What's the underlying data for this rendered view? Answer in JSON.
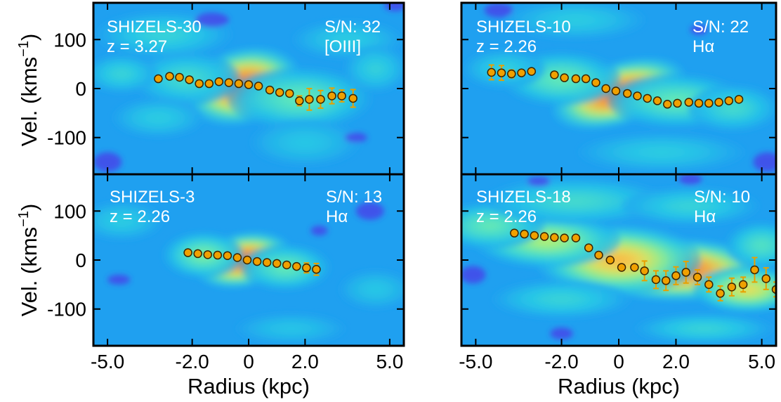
{
  "figure": {
    "xlabel": "Radius (kpc)",
    "ylabel": "Vel. (kms",
    "ylabel_sup": "−1",
    "ylabel_close": ")"
  },
  "colors": {
    "background": "#1fa0f0",
    "point_fill": "#f0a000",
    "point_edge": "#3a2400",
    "errorbar": "#e8a000",
    "text": "#ffffff"
  },
  "chart_data": [
    {
      "type": "scatter",
      "name": "SHIZELS-30",
      "redshift": "z = 3.27",
      "sn": "S/N: 32",
      "line": "[OIII]",
      "x_ticks": [
        "-5.0",
        "-2.0",
        "0",
        "2.0",
        "5.0"
      ],
      "y_ticks": [
        "100",
        "0",
        "-100"
      ],
      "xlim": [
        -5.5,
        5.5
      ],
      "ylim": [
        -175,
        175
      ],
      "emission_blobs": [
        {
          "x": -0.2,
          "y": 5,
          "sx": 1.3,
          "sy": 48,
          "amp": 1.0,
          "rot": -0.25
        },
        {
          "x": 1.8,
          "y": -20,
          "sx": 1.6,
          "sy": 40,
          "amp": 0.45,
          "rot": 0
        },
        {
          "x": -2.2,
          "y": 20,
          "sx": 1.2,
          "sy": 35,
          "amp": 0.35,
          "rot": 0
        },
        {
          "x": -4.5,
          "y": 30,
          "sx": 0.8,
          "sy": 25,
          "amp": 0.3,
          "rot": 0
        },
        {
          "x": -3.0,
          "y": 110,
          "sx": 1.5,
          "sy": 30,
          "amp": 0.3,
          "rot": 0
        },
        {
          "x": 3.5,
          "y": 100,
          "sx": 1.2,
          "sy": 25,
          "amp": 0.25,
          "rot": 0
        },
        {
          "x": 2.0,
          "y": -110,
          "sx": 1.2,
          "sy": 30,
          "amp": 0.22,
          "rot": 0
        },
        {
          "x": -3.2,
          "y": -60,
          "sx": 1.0,
          "sy": 25,
          "amp": 0.25,
          "rot": 0
        },
        {
          "x": 4.5,
          "y": 40,
          "sx": 0.7,
          "sy": 30,
          "amp": 0.28,
          "rot": 0
        }
      ],
      "deep_blobs": [
        {
          "x": -5.0,
          "y": -150,
          "sx": 0.5,
          "sy": 20
        },
        {
          "x": -1.3,
          "y": 140,
          "sx": 0.6,
          "sy": 15
        },
        {
          "x": 5.2,
          "y": 170,
          "sx": 0.4,
          "sy": 12
        },
        {
          "x": 3.8,
          "y": -100,
          "sx": 0.4,
          "sy": 10
        }
      ],
      "points": [
        {
          "x": -3.2,
          "y": 20,
          "err": 0
        },
        {
          "x": -2.8,
          "y": 25,
          "err": 0
        },
        {
          "x": -2.45,
          "y": 23,
          "err": 0
        },
        {
          "x": -2.1,
          "y": 18,
          "err": 0
        },
        {
          "x": -1.75,
          "y": 10,
          "err": 0
        },
        {
          "x": -1.4,
          "y": 10,
          "err": 0
        },
        {
          "x": -1.05,
          "y": 14,
          "err": 0
        },
        {
          "x": -0.7,
          "y": 12,
          "err": 0
        },
        {
          "x": -0.35,
          "y": 10,
          "err": 0
        },
        {
          "x": 0.0,
          "y": 8,
          "err": 0
        },
        {
          "x": 0.35,
          "y": 5,
          "err": 0
        },
        {
          "x": 0.75,
          "y": -3,
          "err": 0
        },
        {
          "x": 1.1,
          "y": -8,
          "err": 0
        },
        {
          "x": 1.45,
          "y": -10,
          "err": 0
        },
        {
          "x": 1.8,
          "y": -25,
          "err": 10
        },
        {
          "x": 2.15,
          "y": -22,
          "err": 22
        },
        {
          "x": 2.55,
          "y": -22,
          "err": 18
        },
        {
          "x": 2.95,
          "y": -15,
          "err": 16
        },
        {
          "x": 3.3,
          "y": -15,
          "err": 12
        },
        {
          "x": 3.7,
          "y": -20,
          "err": 18
        }
      ]
    },
    {
      "type": "scatter",
      "name": "SHIZELS-10",
      "redshift": "z = 2.26",
      "sn": "S/N: 22",
      "line": "Hα",
      "x_ticks": [
        "-5.0",
        "-2.0",
        "0",
        "2.0",
        "5.0"
      ],
      "y_ticks": [
        "100",
        "0",
        "-100"
      ],
      "xlim": [
        -5.5,
        5.5
      ],
      "ylim": [
        -175,
        175
      ],
      "emission_blobs": [
        {
          "x": 0.0,
          "y": -10,
          "sx": 1.5,
          "sy": 40,
          "amp": 1.0,
          "rot": -0.3
        },
        {
          "x": -2.0,
          "y": 20,
          "sx": 1.3,
          "sy": 35,
          "amp": 0.45,
          "rot": 0
        },
        {
          "x": 2.0,
          "y": -25,
          "sx": 1.5,
          "sy": 35,
          "amp": 0.45,
          "rot": 0
        },
        {
          "x": 4.0,
          "y": -40,
          "sx": 1.0,
          "sy": 30,
          "amp": 0.35,
          "rot": 0
        },
        {
          "x": -4.0,
          "y": 40,
          "sx": 0.9,
          "sy": 25,
          "amp": 0.28,
          "rot": 0
        },
        {
          "x": -1.5,
          "y": 140,
          "sx": 1.5,
          "sy": 25,
          "amp": 0.25,
          "rot": 0
        },
        {
          "x": 1.5,
          "y": -130,
          "sx": 1.8,
          "sy": 25,
          "amp": 0.25,
          "rot": 0
        }
      ],
      "deep_blobs": [
        {
          "x": -4.2,
          "y": 160,
          "sx": 0.5,
          "sy": 15
        },
        {
          "x": 5.2,
          "y": -150,
          "sx": 0.5,
          "sy": 20
        },
        {
          "x": 2.8,
          "y": 120,
          "sx": 0.3,
          "sy": 10
        }
      ],
      "points": [
        {
          "x": -4.45,
          "y": 33,
          "err": 15
        },
        {
          "x": -4.1,
          "y": 32,
          "err": 15
        },
        {
          "x": -3.75,
          "y": 30,
          "err": 8
        },
        {
          "x": -3.4,
          "y": 32,
          "err": 6
        },
        {
          "x": -3.05,
          "y": 35,
          "err": 5
        },
        {
          "x": -2.25,
          "y": 28,
          "err": 6
        },
        {
          "x": -1.9,
          "y": 22,
          "err": 0
        },
        {
          "x": -1.5,
          "y": 20,
          "err": 0
        },
        {
          "x": -1.15,
          "y": 20,
          "err": 0
        },
        {
          "x": -0.8,
          "y": 12,
          "err": 0
        },
        {
          "x": -0.45,
          "y": 0,
          "err": 0
        },
        {
          "x": -0.1,
          "y": -5,
          "err": 0
        },
        {
          "x": 0.3,
          "y": -10,
          "err": 0
        },
        {
          "x": 0.65,
          "y": -15,
          "err": 0
        },
        {
          "x": 1.0,
          "y": -20,
          "err": 0
        },
        {
          "x": 1.35,
          "y": -25,
          "err": 0
        },
        {
          "x": 1.7,
          "y": -32,
          "err": 0
        },
        {
          "x": 2.05,
          "y": -30,
          "err": 0
        },
        {
          "x": 2.45,
          "y": -28,
          "err": 0
        },
        {
          "x": 2.8,
          "y": -30,
          "err": 0
        },
        {
          "x": 3.15,
          "y": -30,
          "err": 0
        },
        {
          "x": 3.5,
          "y": -28,
          "err": 0
        },
        {
          "x": 3.85,
          "y": -25,
          "err": 5
        },
        {
          "x": 4.2,
          "y": -22,
          "err": 5
        }
      ]
    },
    {
      "type": "scatter",
      "name": "SHIZELS-3",
      "redshift": "z = 2.26",
      "sn": "S/N: 13",
      "line": "Hα",
      "x_ticks": [
        "-5.0",
        "-2.0",
        "0",
        "2.0",
        "5.0"
      ],
      "y_ticks": [
        "100",
        "0",
        "-100"
      ],
      "xlim": [
        -5.5,
        5.5
      ],
      "ylim": [
        -175,
        175
      ],
      "emission_blobs": [
        {
          "x": -0.2,
          "y": 0,
          "sx": 1.1,
          "sy": 35,
          "amp": 1.0,
          "rot": -0.2
        },
        {
          "x": -1.6,
          "y": 10,
          "sx": 0.9,
          "sy": 30,
          "amp": 0.5,
          "rot": 0
        },
        {
          "x": 1.3,
          "y": -15,
          "sx": 1.0,
          "sy": 30,
          "amp": 0.45,
          "rot": 0
        },
        {
          "x": -4.5,
          "y": 80,
          "sx": 0.9,
          "sy": 25,
          "amp": 0.25,
          "rot": 0
        },
        {
          "x": 4.5,
          "y": -60,
          "sx": 0.8,
          "sy": 25,
          "amp": 0.22,
          "rot": 0
        },
        {
          "x": 1.5,
          "y": -140,
          "sx": 1.2,
          "sy": 20,
          "amp": 0.2,
          "rot": 0
        }
      ],
      "deep_blobs": [
        {
          "x": 4.3,
          "y": 100,
          "sx": 0.5,
          "sy": 18
        },
        {
          "x": -4.6,
          "y": -40,
          "sx": 0.4,
          "sy": 10
        },
        {
          "x": 2.5,
          "y": 60,
          "sx": 0.3,
          "sy": 10
        }
      ],
      "points": [
        {
          "x": -2.15,
          "y": 15,
          "err": 6
        },
        {
          "x": -1.8,
          "y": 13,
          "err": 5
        },
        {
          "x": -1.45,
          "y": 11,
          "err": 0
        },
        {
          "x": -1.1,
          "y": 10,
          "err": 0
        },
        {
          "x": -0.75,
          "y": 9,
          "err": 0
        },
        {
          "x": -0.4,
          "y": 5,
          "err": 0
        },
        {
          "x": -0.05,
          "y": 0,
          "err": 0
        },
        {
          "x": 0.3,
          "y": -3,
          "err": 0
        },
        {
          "x": 0.65,
          "y": -5,
          "err": 0
        },
        {
          "x": 1.0,
          "y": -7,
          "err": 0
        },
        {
          "x": 1.35,
          "y": -10,
          "err": 0
        },
        {
          "x": 1.7,
          "y": -13,
          "err": 0
        },
        {
          "x": 2.05,
          "y": -16,
          "err": 10
        },
        {
          "x": 2.4,
          "y": -19,
          "err": 12
        }
      ]
    },
    {
      "type": "scatter",
      "name": "SHIZELS-18",
      "redshift": "z = 2.26",
      "sn": "S/N: 10",
      "line": "Hα",
      "x_ticks": [
        "-5.0",
        "-2.0",
        "0",
        "2.0",
        "5.0"
      ],
      "y_ticks": [
        "100",
        "0",
        "-100"
      ],
      "xlim": [
        -5.5,
        5.5
      ],
      "ylim": [
        -175,
        175
      ],
      "emission_blobs": [
        {
          "x": 2.0,
          "y": -20,
          "sx": 2.0,
          "sy": 40,
          "amp": 1.0,
          "rot": 0
        },
        {
          "x": 0.0,
          "y": 0,
          "sx": 1.8,
          "sy": 45,
          "amp": 0.8,
          "rot": 0
        },
        {
          "x": -2.5,
          "y": 40,
          "sx": 1.6,
          "sy": 35,
          "amp": 0.6,
          "rot": 0
        },
        {
          "x": -4.5,
          "y": 70,
          "sx": 1.2,
          "sy": 30,
          "amp": 0.45,
          "rot": 0
        },
        {
          "x": 4.5,
          "y": -60,
          "sx": 1.2,
          "sy": 30,
          "amp": 0.7,
          "rot": 0
        },
        {
          "x": -1.5,
          "y": 120,
          "sx": 2.0,
          "sy": 30,
          "amp": 0.35,
          "rot": 0
        },
        {
          "x": 2.5,
          "y": 110,
          "sx": 1.5,
          "sy": 25,
          "amp": 0.3,
          "rot": 0
        },
        {
          "x": -2.0,
          "y": -80,
          "sx": 1.5,
          "sy": 25,
          "amp": 0.3,
          "rot": 0
        },
        {
          "x": 3.0,
          "y": -140,
          "sx": 1.5,
          "sy": 20,
          "amp": 0.3,
          "rot": 0
        },
        {
          "x": 5.0,
          "y": 30,
          "sx": 0.8,
          "sy": 30,
          "amp": 0.4,
          "rot": 0
        }
      ],
      "deep_blobs": [
        {
          "x": -5.1,
          "y": -30,
          "sx": 0.45,
          "sy": 18
        },
        {
          "x": -2.0,
          "y": -150,
          "sx": 0.4,
          "sy": 12
        },
        {
          "x": 2.5,
          "y": 165,
          "sx": 0.4,
          "sy": 12
        },
        {
          "x": -2.8,
          "y": 160,
          "sx": 0.4,
          "sy": 10
        }
      ],
      "points": [
        {
          "x": -3.65,
          "y": 55,
          "err": 6
        },
        {
          "x": -3.3,
          "y": 53,
          "err": 5
        },
        {
          "x": -2.95,
          "y": 50,
          "err": 5
        },
        {
          "x": -2.6,
          "y": 48,
          "err": 5
        },
        {
          "x": -2.25,
          "y": 46,
          "err": 5
        },
        {
          "x": -1.9,
          "y": 45,
          "err": 5
        },
        {
          "x": -1.5,
          "y": 45,
          "err": 5
        },
        {
          "x": -1.05,
          "y": 25,
          "err": 0
        },
        {
          "x": -0.7,
          "y": 10,
          "err": 0
        },
        {
          "x": -0.3,
          "y": 0,
          "err": 0
        },
        {
          "x": 0.1,
          "y": -15,
          "err": 0
        },
        {
          "x": 0.55,
          "y": -15,
          "err": 0
        },
        {
          "x": 0.9,
          "y": -22,
          "err": 20
        },
        {
          "x": 1.3,
          "y": -40,
          "err": 18
        },
        {
          "x": 1.65,
          "y": -42,
          "err": 20
        },
        {
          "x": 2.0,
          "y": -32,
          "err": 18
        },
        {
          "x": 2.35,
          "y": -25,
          "err": 22
        },
        {
          "x": 2.75,
          "y": -35,
          "err": 15
        },
        {
          "x": 3.15,
          "y": -50,
          "err": 15
        },
        {
          "x": 3.55,
          "y": -68,
          "err": 15
        },
        {
          "x": 3.95,
          "y": -55,
          "err": 18
        },
        {
          "x": 4.35,
          "y": -50,
          "err": 15
        },
        {
          "x": 4.75,
          "y": -20,
          "err": 25
        },
        {
          "x": 5.15,
          "y": -38,
          "err": 22
        },
        {
          "x": 5.5,
          "y": -60,
          "err": 15
        }
      ]
    }
  ]
}
